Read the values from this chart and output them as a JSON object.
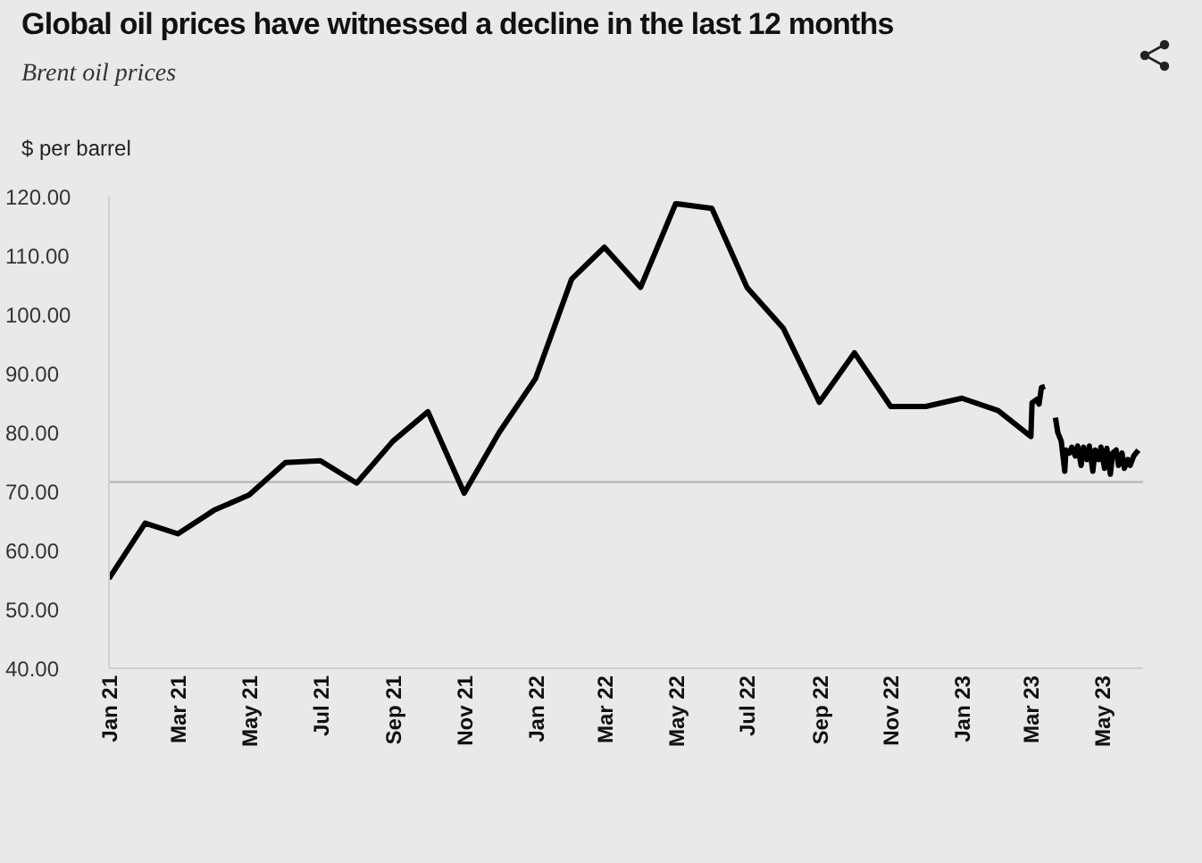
{
  "chart_data": {
    "type": "line",
    "title": "Global oil prices have witnessed a decline in the last 12 months",
    "subtitle": "Brent oil prices",
    "ylabel": "$ per barrel",
    "series": [
      {
        "color": "#000000",
        "x": [
          "2021-01-01",
          "2021-02-01",
          "2021-03-01",
          "2021-04-01",
          "2021-05-01",
          "2021-06-01",
          "2021-07-01",
          "2021-08-01",
          "2021-09-01",
          "2021-10-01",
          "2021-11-01",
          "2021-12-01",
          "2022-01-01",
          "2022-02-01",
          "2022-03-01",
          "2022-04-01",
          "2022-05-01",
          "2022-06-01",
          "2022-07-01",
          "2022-08-01",
          "2022-09-01",
          "2022-10-01",
          "2022-11-01",
          "2022-12-01",
          "2023-01-01",
          "2023-02-01",
          "2023-03-01",
          "2023-03-02",
          "2023-03-06",
          "2023-03-08",
          "2023-03-10",
          "2023-03-13",
          "2023-03-17",
          "2023-03-22",
          "2023-03-24",
          "2023-03-27",
          "2023-03-30",
          "2023-03-31",
          "2023-04-03",
          "2023-04-05",
          "2023-04-08",
          "2023-04-10",
          "2023-04-13",
          "2023-04-15",
          "2023-04-18",
          "2023-04-20",
          "2023-04-23",
          "2023-04-25",
          "2023-04-28",
          "2023-04-30",
          "2023-05-03",
          "2023-05-05",
          "2023-05-08",
          "2023-05-10",
          "2023-05-13",
          "2023-05-15",
          "2023-05-18",
          "2023-05-20",
          "2023-05-23",
          "2023-05-25",
          "2023-05-28",
          "2023-06-01"
        ],
        "values": [
          55.2,
          64.6,
          62.8,
          66.8,
          69.4,
          74.9,
          75.2,
          71.4,
          78.5,
          83.5,
          69.7,
          80,
          89.1,
          106,
          111.4,
          104.6,
          118.8,
          118,
          104.6,
          97.7,
          85.1,
          93.5,
          84.4,
          84.4,
          85.8,
          83.7,
          79.3,
          85,
          85.6,
          84.8,
          87.6,
          87.8,
          null,
          82.5,
          80,
          78.5,
          73.4,
          77,
          76.5,
          77.5,
          76,
          77.7,
          74.4,
          77.5,
          75.4,
          77.7,
          73.4,
          77,
          75.4,
          77.5,
          73.9,
          77.3,
          72.9,
          76.5,
          77,
          74.4,
          76.5,
          73.9,
          75.4,
          74.4,
          76,
          77
        ]
      }
    ],
    "xlim": [
      "2021-01-01",
      "2023-06-05"
    ],
    "xticks": [
      {
        "value": "2021-01-01",
        "label": "Jan 21"
      },
      {
        "value": "2021-03-01",
        "label": "Mar 21"
      },
      {
        "value": "2021-05-01",
        "label": "May 21"
      },
      {
        "value": "2021-07-01",
        "label": "Jul 21"
      },
      {
        "value": "2021-09-01",
        "label": "Sep 21"
      },
      {
        "value": "2021-11-01",
        "label": "Nov 21"
      },
      {
        "value": "2022-01-01",
        "label": "Jan 22"
      },
      {
        "value": "2022-03-01",
        "label": "Mar 22"
      },
      {
        "value": "2022-05-01",
        "label": "May 22"
      },
      {
        "value": "2022-07-01",
        "label": "Jul 22"
      },
      {
        "value": "2022-09-01",
        "label": "Sep 22"
      },
      {
        "value": "2022-11-01",
        "label": "Nov 22"
      },
      {
        "value": "2023-01-01",
        "label": "Jan 23"
      },
      {
        "value": "2023-03-01",
        "label": "Mar 23"
      },
      {
        "value": "2023-05-01",
        "label": "May 23"
      }
    ],
    "ylim": [
      40,
      120
    ],
    "yticks": [
      {
        "value": 40,
        "label": "40.00"
      },
      {
        "value": 50,
        "label": "50.00"
      },
      {
        "value": 60,
        "label": "60.00"
      },
      {
        "value": 70,
        "label": "70.00"
      },
      {
        "value": 80,
        "label": "80.00"
      },
      {
        "value": 90,
        "label": "90.00"
      },
      {
        "value": 100,
        "label": "100.00"
      },
      {
        "value": 110,
        "label": "110.00"
      },
      {
        "value": 120,
        "label": "120.00"
      }
    ],
    "ref_lines": [
      {
        "axis": "y",
        "value": 71.6,
        "color": "#b0b0b0"
      }
    ],
    "marker": "none"
  }
}
